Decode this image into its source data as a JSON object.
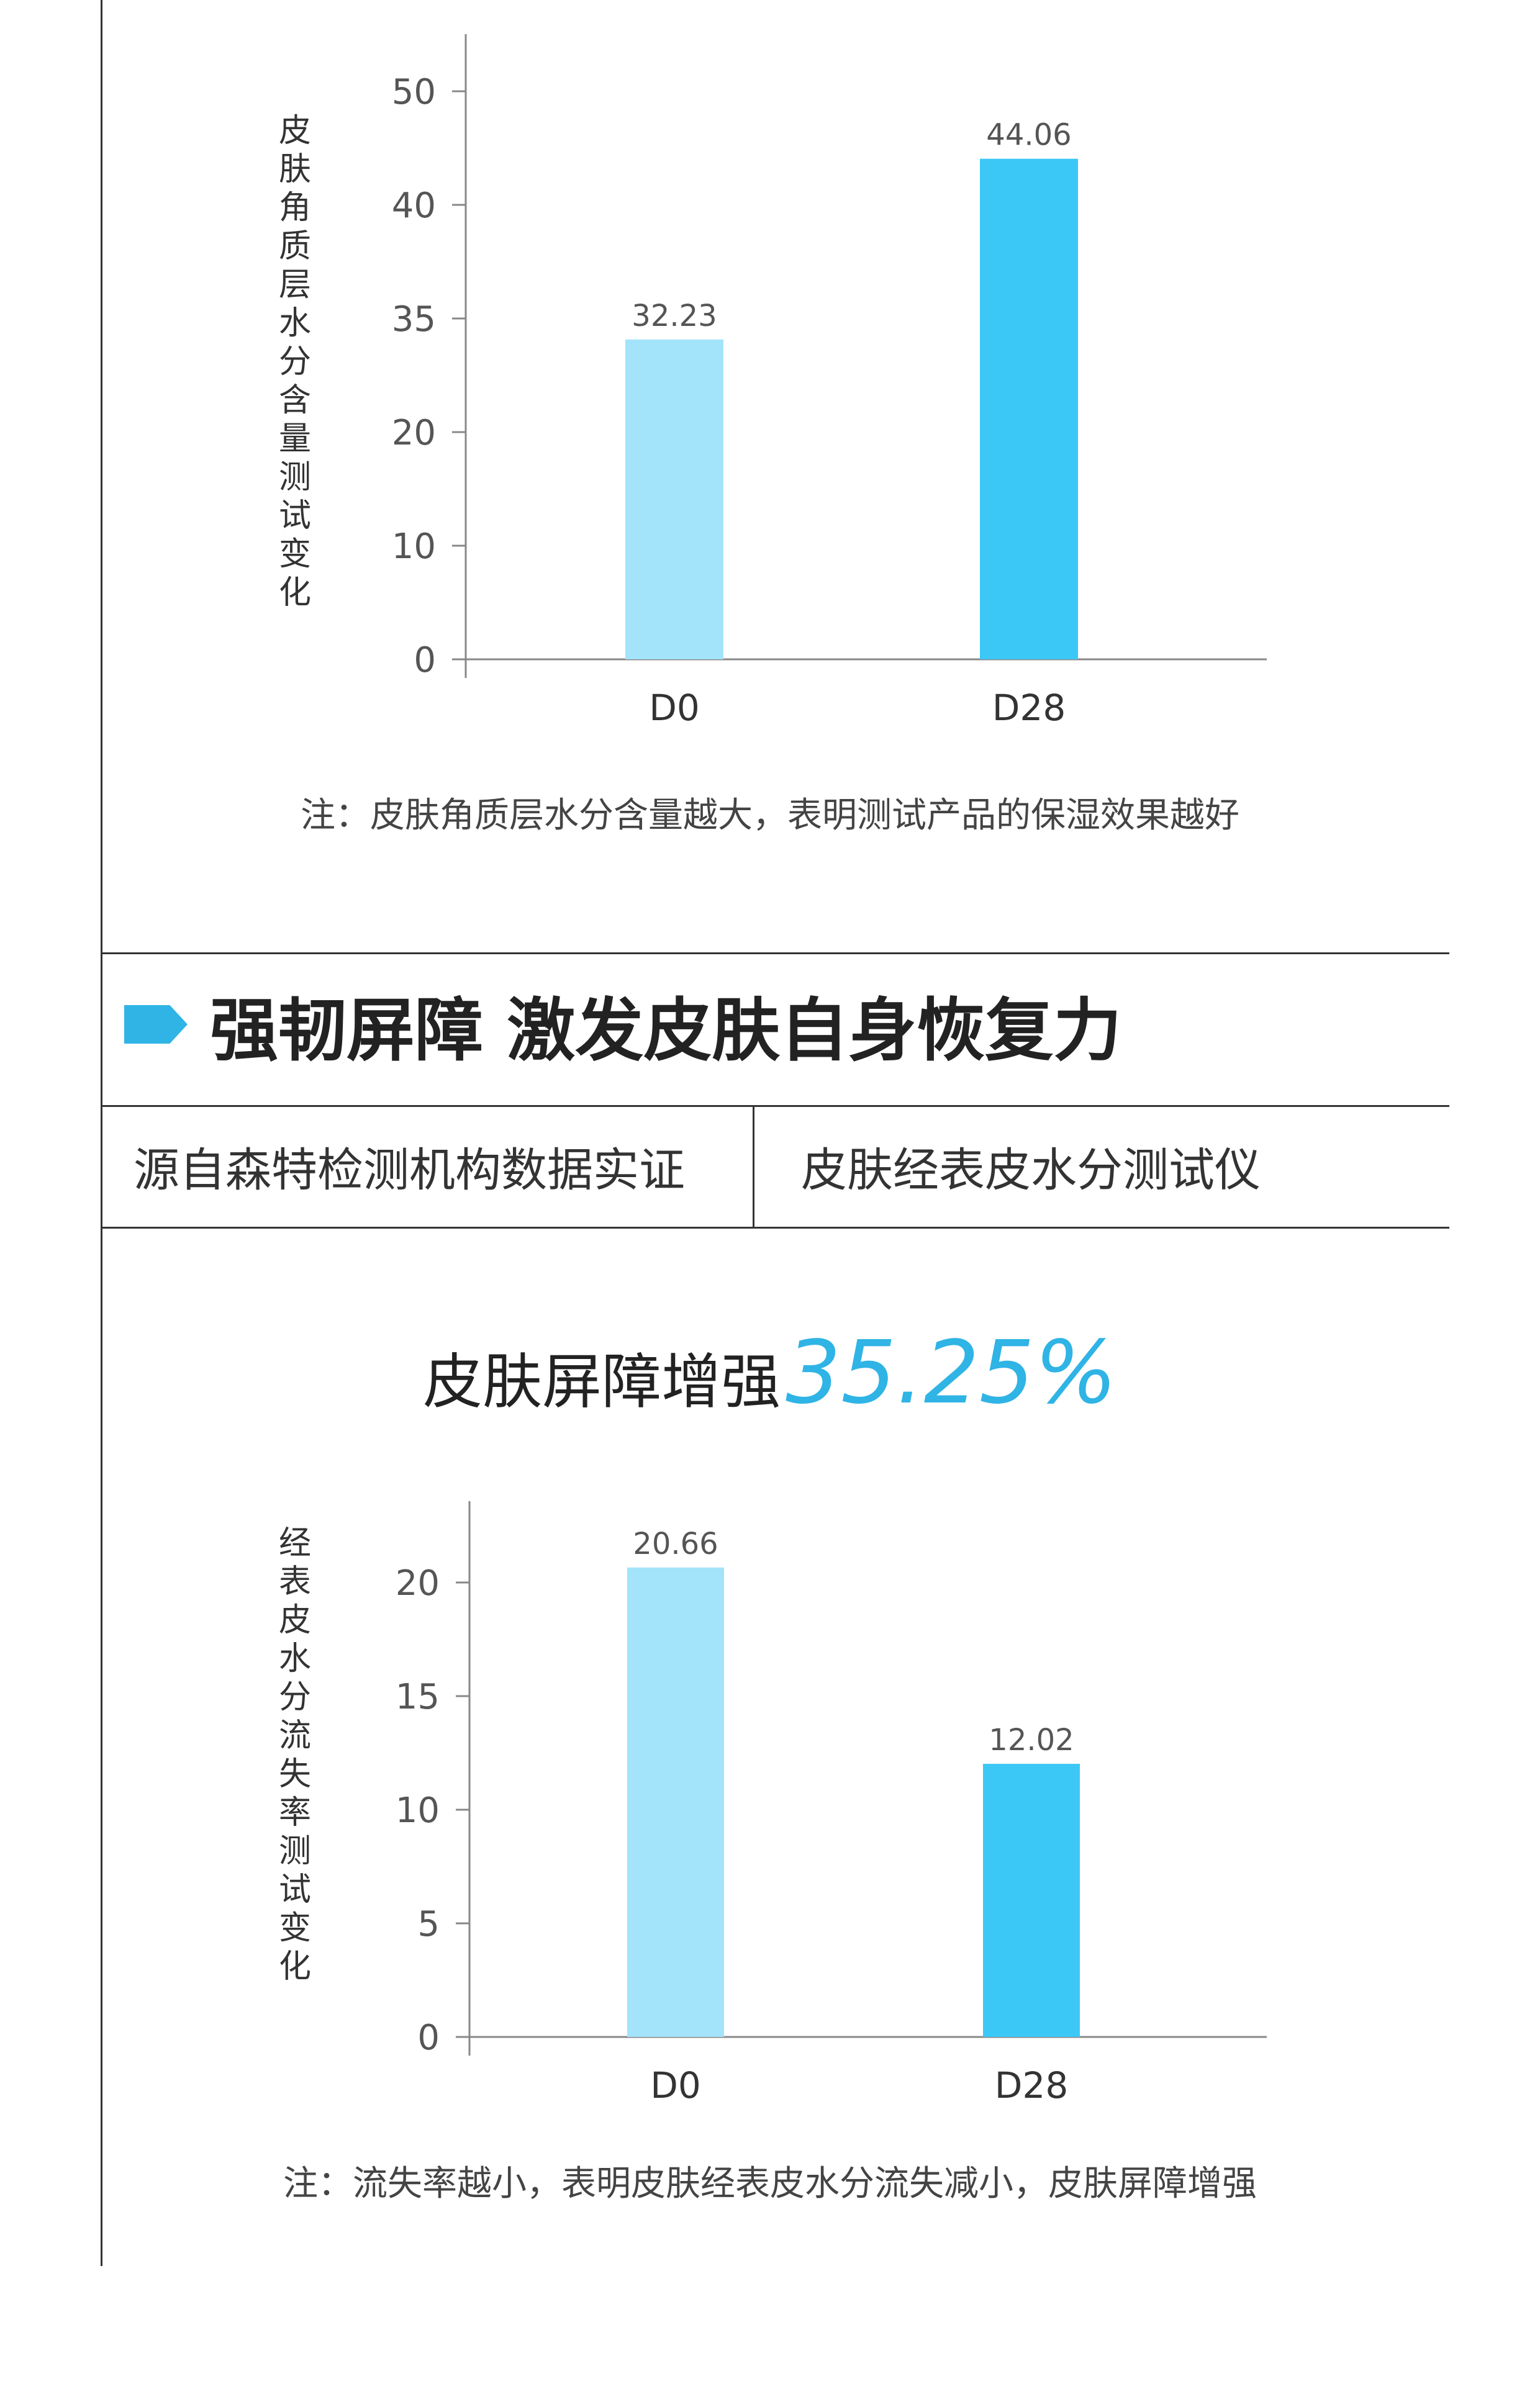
{
  "charts": [
    {
      "ylabel": "皮肤角质层水分含量测试变化",
      "note": "注：皮肤角质层水分含量越大，表明测试产品的保湿效果越好"
    },
    {
      "ylabel": "经表皮水分流失率测试变化",
      "note": "注：流失率越小，表明皮肤经表皮水分流失减小，皮肤屏障增强"
    }
  ],
  "section": {
    "title": "强韧屏障 激发皮肤自身恢复力",
    "info_left": "源自森特检测机构数据实证",
    "info_right": "皮肤经表皮水分测试仪",
    "headline_text": "皮肤屏障增强",
    "headline_value": "35.25%"
  },
  "colors": {
    "accent": "#2fb4e5",
    "bar_d0": "#a3e4fb",
    "bar_d28": "#3cc8f6",
    "axis": "#888888",
    "rule": "#333333"
  },
  "chart_data": [
    {
      "type": "bar",
      "title": "",
      "xlabel": "",
      "ylabel": "皮肤角质层水分含量测试变化",
      "categories": [
        "D0",
        "D28"
      ],
      "values": [
        32.23,
        44.06
      ],
      "data_labels": [
        "32.23",
        "44.06"
      ],
      "y_tick_labels": [
        "0",
        "10",
        "20",
        "35",
        "40",
        "50"
      ],
      "grid": false,
      "legend": "none"
    },
    {
      "type": "bar",
      "title": "",
      "xlabel": "",
      "ylabel": "经表皮水分流失率测试变化",
      "categories": [
        "D0",
        "D28"
      ],
      "values": [
        20.66,
        12.02
      ],
      "data_labels": [
        "20.66",
        "12.02"
      ],
      "y_tick_labels": [
        "0",
        "5",
        "10",
        "15",
        "20"
      ],
      "ylim": [
        0,
        23
      ],
      "grid": false,
      "legend": "none"
    }
  ]
}
